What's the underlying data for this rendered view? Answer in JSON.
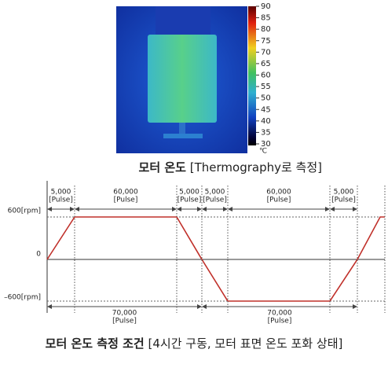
{
  "thermography": {
    "scale_labels": [
      "90",
      "85",
      "80",
      "75",
      "70",
      "65",
      "60",
      "55",
      "50",
      "45",
      "40",
      "35",
      "30"
    ],
    "unit": "℃"
  },
  "caption1": {
    "bold": "모터 온도",
    "rest": "[Thermography로 측정]"
  },
  "profile": {
    "y_labels": [
      "600[rpm]",
      "0",
      "–600[rpm]"
    ],
    "top_segments": [
      {
        "count": "5,000",
        "unit": "[Pulse]"
      },
      {
        "count": "60,000",
        "unit": "[Pulse]"
      },
      {
        "count": "5,000",
        "unit": "[Pulse]"
      },
      {
        "count": "5,000",
        "unit": "[Pulse]"
      },
      {
        "count": "60,000",
        "unit": "[Pulse]"
      },
      {
        "count": "5,000",
        "unit": "[Pulse]"
      }
    ],
    "bottom_segments": [
      {
        "count": "70,000",
        "unit": "[Pulse]"
      },
      {
        "count": "70,000",
        "unit": "[Pulse]"
      }
    ]
  },
  "caption2": {
    "bold": "모터 온도 측정 조건",
    "rest": "[4시간 구동, 모터 표면 온도 포화 상태]"
  }
}
